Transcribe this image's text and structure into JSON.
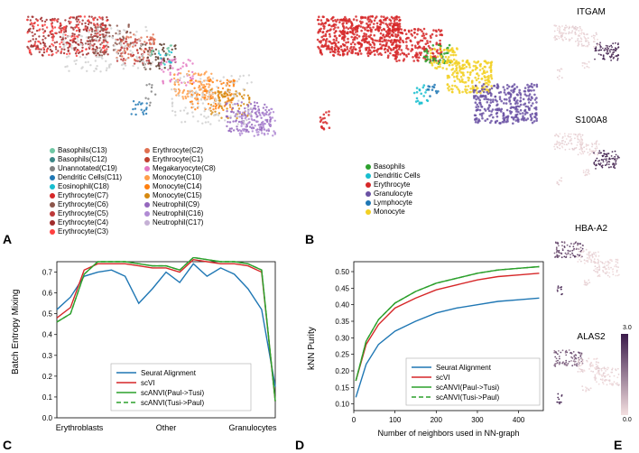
{
  "panelA": {
    "label": "A",
    "legend_col1": [
      {
        "label": "Basophils(C13)",
        "color": "#6fc7a4"
      },
      {
        "label": "Basophils(C12)",
        "color": "#3b8686"
      },
      {
        "label": "Unannotated(C19)",
        "color": "#808080"
      },
      {
        "label": "Dendritic Cells(C11)",
        "color": "#1f77b4"
      },
      {
        "label": "Eosinophil(C18)",
        "color": "#17becf"
      },
      {
        "label": "Erythrocyte(C7)",
        "color": "#d62728"
      },
      {
        "label": "Erythrocyte(C6)",
        "color": "#8c564b"
      },
      {
        "label": "Erythrocyte(C5)",
        "color": "#bd3939"
      },
      {
        "label": "Erythrocyte(C4)",
        "color": "#a02c2c"
      },
      {
        "label": "Erythrocyte(C3)",
        "color": "#ff4040"
      }
    ],
    "legend_col2": [
      {
        "label": "Erythrocyte(C2)",
        "color": "#e07050"
      },
      {
        "label": "Erythrocyte(C1)",
        "color": "#c04030"
      },
      {
        "label": "Megakaryocyte(C8)",
        "color": "#e377c2"
      },
      {
        "label": "Monocyte(C10)",
        "color": "#ff9e4a"
      },
      {
        "label": "Monocyte(C14)",
        "color": "#ff7f0e"
      },
      {
        "label": "Monocyte(C15)",
        "color": "#d68910"
      },
      {
        "label": "Neutrophil(C9)",
        "color": "#9467bd"
      },
      {
        "label": "Neutrophil(C16)",
        "color": "#b08bd4"
      },
      {
        "label": "Neutrophil(C17)",
        "color": "#c5b0d5"
      }
    ]
  },
  "panelB": {
    "label": "B",
    "legend": [
      {
        "label": "Basophils",
        "color": "#2ca02c"
      },
      {
        "label": "Dendritic Cells",
        "color": "#17becf"
      },
      {
        "label": "Erythrocyte",
        "color": "#d62728"
      },
      {
        "label": "Granulocyte",
        "color": "#6a51a3"
      },
      {
        "label": "Lymphocyte",
        "color": "#1f77b4"
      },
      {
        "label": "Monocyte",
        "color": "#f2d024"
      }
    ]
  },
  "panelC": {
    "label": "C",
    "ylabel": "Batch Entropy Mixing",
    "xtick1": "Erythroblasts",
    "xtick2": "Other",
    "xtick3": "Granulocytes",
    "yticks": [
      "0.0",
      "0.1",
      "0.2",
      "0.3",
      "0.4",
      "0.5",
      "0.6",
      "0.7"
    ],
    "series": [
      {
        "name": "Seurat Alignment",
        "color": "#1f77b4",
        "dash": "none",
        "values": [
          0.52,
          0.58,
          0.68,
          0.7,
          0.71,
          0.68,
          0.55,
          0.62,
          0.7,
          0.65,
          0.74,
          0.68,
          0.72,
          0.69,
          0.62,
          0.52,
          0.15
        ]
      },
      {
        "name": "scVI",
        "color": "#d62728",
        "dash": "none",
        "values": [
          0.48,
          0.53,
          0.71,
          0.74,
          0.74,
          0.74,
          0.73,
          0.72,
          0.72,
          0.7,
          0.76,
          0.75,
          0.74,
          0.74,
          0.73,
          0.7,
          0.08
        ]
      },
      {
        "name": "scANVI(Paul->Tusi)",
        "color": "#2ca02c",
        "dash": "none",
        "values": [
          0.46,
          0.5,
          0.69,
          0.75,
          0.75,
          0.75,
          0.74,
          0.73,
          0.73,
          0.71,
          0.77,
          0.76,
          0.75,
          0.75,
          0.74,
          0.71,
          0.08
        ]
      },
      {
        "name": "scANVI(Tusi->Paul)",
        "color": "#2ca02c",
        "dash": "5,3",
        "values": [
          0.46,
          0.5,
          0.69,
          0.75,
          0.75,
          0.75,
          0.74,
          0.73,
          0.73,
          0.71,
          0.77,
          0.76,
          0.75,
          0.75,
          0.74,
          0.71,
          0.08
        ]
      }
    ]
  },
  "panelD": {
    "label": "D",
    "ylabel": "kNN Purity",
    "xlabel": "Number of neighbors used in NN-graph",
    "xticks": [
      "0",
      "100",
      "200",
      "300",
      "400"
    ],
    "yticks": [
      "0.10",
      "0.15",
      "0.20",
      "0.25",
      "0.30",
      "0.35",
      "0.40",
      "0.45",
      "0.50"
    ],
    "series": [
      {
        "name": "Seurat Alignment",
        "color": "#1f77b4",
        "dash": "none",
        "values": [
          [
            5,
            0.12
          ],
          [
            30,
            0.22
          ],
          [
            60,
            0.28
          ],
          [
            100,
            0.32
          ],
          [
            150,
            0.35
          ],
          [
            200,
            0.375
          ],
          [
            250,
            0.39
          ],
          [
            300,
            0.4
          ],
          [
            350,
            0.41
          ],
          [
            400,
            0.415
          ],
          [
            450,
            0.42
          ]
        ]
      },
      {
        "name": "scVI",
        "color": "#d62728",
        "dash": "none",
        "values": [
          [
            5,
            0.17
          ],
          [
            30,
            0.28
          ],
          [
            60,
            0.34
          ],
          [
            100,
            0.39
          ],
          [
            150,
            0.42
          ],
          [
            200,
            0.445
          ],
          [
            250,
            0.46
          ],
          [
            300,
            0.475
          ],
          [
            350,
            0.485
          ],
          [
            400,
            0.49
          ],
          [
            450,
            0.495
          ]
        ]
      },
      {
        "name": "scANVI(Paul->Tusi)",
        "color": "#2ca02c",
        "dash": "none",
        "values": [
          [
            5,
            0.17
          ],
          [
            30,
            0.29
          ],
          [
            60,
            0.355
          ],
          [
            100,
            0.405
          ],
          [
            150,
            0.44
          ],
          [
            200,
            0.465
          ],
          [
            250,
            0.48
          ],
          [
            300,
            0.495
          ],
          [
            350,
            0.505
          ],
          [
            400,
            0.51
          ],
          [
            450,
            0.515
          ]
        ]
      },
      {
        "name": "scANVI(Tusi->Paul)",
        "color": "#2ca02c",
        "dash": "5,3",
        "values": [
          [
            5,
            0.17
          ],
          [
            30,
            0.29
          ],
          [
            60,
            0.355
          ],
          [
            100,
            0.405
          ],
          [
            150,
            0.44
          ],
          [
            200,
            0.465
          ],
          [
            250,
            0.48
          ],
          [
            300,
            0.495
          ],
          [
            350,
            0.505
          ],
          [
            400,
            0.51
          ],
          [
            450,
            0.515
          ]
        ]
      }
    ]
  },
  "panelE": {
    "label": "E",
    "genes": [
      "ITGAM",
      "S100A8",
      "HBA-A2",
      "ALAS2"
    ],
    "colorbar_ticks": [
      "0.0",
      "3.0"
    ],
    "cmap_low": "#f4e0e0",
    "cmap_high": "#3a1a4a"
  }
}
